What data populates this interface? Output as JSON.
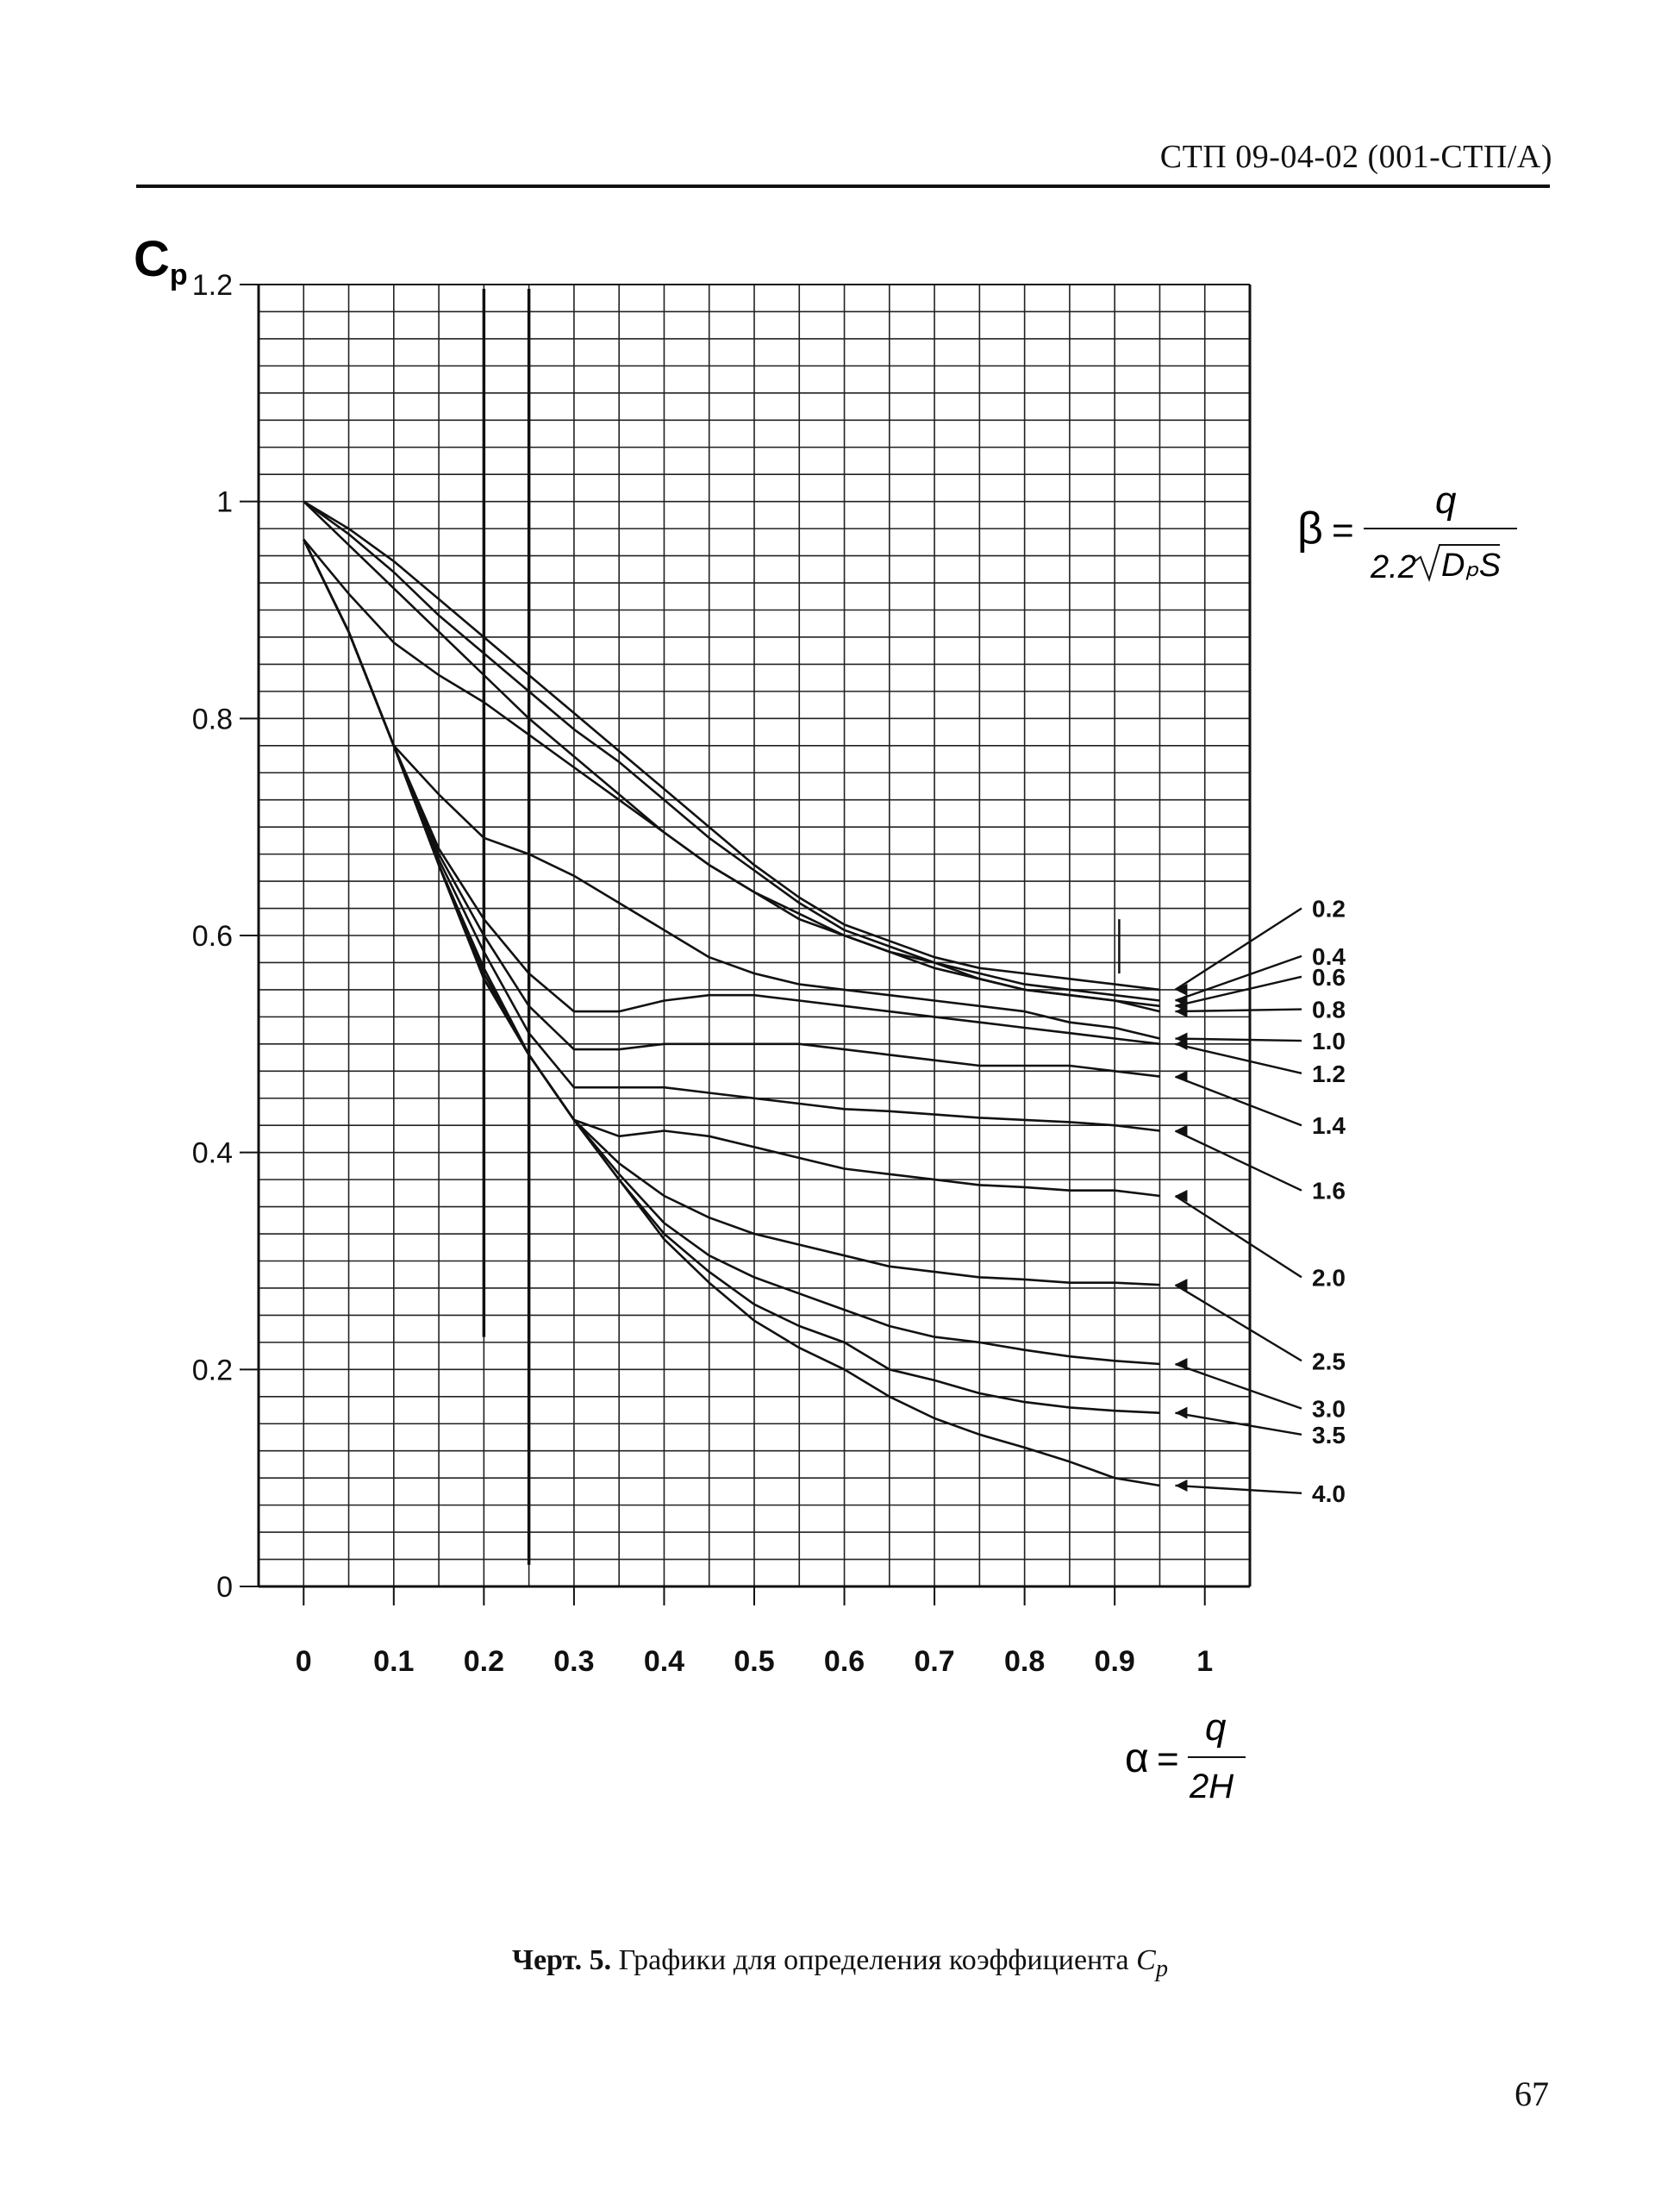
{
  "header": {
    "doc_code": "СТП 09-04-02 (001-СТП/А)"
  },
  "caption": {
    "label": "Черт. 5.",
    "text": "Графики для определения коэффициента",
    "symbol": "C",
    "symbol_sub": "p"
  },
  "page_number": "67",
  "chart_data": {
    "type": "line",
    "y_axis_symbol": "C",
    "y_axis_symbol_sub": "p",
    "x_ticks": [
      "0",
      "0.1",
      "0.2",
      "0.3",
      "0.4",
      "0.5",
      "0.6",
      "0.7",
      "0.8",
      "0.9",
      "1"
    ],
    "y_ticks": [
      "0",
      "0.2",
      "0.4",
      "0.6",
      "0.8",
      "1",
      "1.2"
    ],
    "xlim": [
      -0.05,
      1.05
    ],
    "ylim": [
      0,
      1.2
    ],
    "grid": true,
    "beta_formula": {
      "lhs": "β",
      "numerator": "q",
      "coef": "2.2",
      "radicand": "DₚS"
    },
    "alpha_formula": {
      "lhs": "α",
      "numerator": "q",
      "denominator": "2H"
    },
    "series": [
      {
        "name": "0.2",
        "label_y": 0.625,
        "points": [
          [
            0,
            1.0
          ],
          [
            0.05,
            0.975
          ],
          [
            0.1,
            0.945
          ],
          [
            0.15,
            0.91
          ],
          [
            0.2,
            0.875
          ],
          [
            0.25,
            0.84
          ],
          [
            0.3,
            0.805
          ],
          [
            0.35,
            0.77
          ],
          [
            0.4,
            0.735
          ],
          [
            0.45,
            0.7
          ],
          [
            0.5,
            0.665
          ],
          [
            0.55,
            0.635
          ],
          [
            0.6,
            0.61
          ],
          [
            0.65,
            0.595
          ],
          [
            0.7,
            0.58
          ],
          [
            0.75,
            0.57
          ],
          [
            0.8,
            0.565
          ],
          [
            0.85,
            0.56
          ],
          [
            0.9,
            0.555
          ],
          [
            0.95,
            0.55
          ]
        ]
      },
      {
        "name": "0.4",
        "label_y": 0.581,
        "points": [
          [
            0,
            1.0
          ],
          [
            0.05,
            0.97
          ],
          [
            0.1,
            0.935
          ],
          [
            0.15,
            0.895
          ],
          [
            0.2,
            0.86
          ],
          [
            0.25,
            0.825
          ],
          [
            0.3,
            0.79
          ],
          [
            0.35,
            0.76
          ],
          [
            0.4,
            0.725
          ],
          [
            0.45,
            0.69
          ],
          [
            0.5,
            0.66
          ],
          [
            0.55,
            0.63
          ],
          [
            0.6,
            0.605
          ],
          [
            0.65,
            0.59
          ],
          [
            0.7,
            0.575
          ],
          [
            0.75,
            0.565
          ],
          [
            0.8,
            0.555
          ],
          [
            0.85,
            0.55
          ],
          [
            0.9,
            0.545
          ],
          [
            0.95,
            0.54
          ]
        ]
      },
      {
        "name": "0.6",
        "label_y": 0.562,
        "points": [
          [
            0,
            1.0
          ],
          [
            0.05,
            0.96
          ],
          [
            0.1,
            0.92
          ],
          [
            0.15,
            0.88
          ],
          [
            0.2,
            0.84
          ],
          [
            0.25,
            0.8
          ],
          [
            0.3,
            0.765
          ],
          [
            0.35,
            0.73
          ],
          [
            0.4,
            0.695
          ],
          [
            0.45,
            0.665
          ],
          [
            0.5,
            0.64
          ],
          [
            0.55,
            0.615
          ],
          [
            0.6,
            0.6
          ],
          [
            0.65,
            0.585
          ],
          [
            0.7,
            0.57
          ],
          [
            0.75,
            0.56
          ],
          [
            0.8,
            0.55
          ],
          [
            0.85,
            0.545
          ],
          [
            0.9,
            0.54
          ],
          [
            0.95,
            0.535
          ]
        ]
      },
      {
        "name": "0.8",
        "label_y": 0.532,
        "points": [
          [
            0,
            0.965
          ],
          [
            0.05,
            0.915
          ],
          [
            0.1,
            0.87
          ],
          [
            0.15,
            0.84
          ],
          [
            0.2,
            0.815
          ],
          [
            0.25,
            0.785
          ],
          [
            0.3,
            0.755
          ],
          [
            0.35,
            0.725
          ],
          [
            0.4,
            0.695
          ],
          [
            0.45,
            0.665
          ],
          [
            0.5,
            0.64
          ],
          [
            0.55,
            0.62
          ],
          [
            0.6,
            0.6
          ],
          [
            0.65,
            0.585
          ],
          [
            0.7,
            0.575
          ],
          [
            0.75,
            0.56
          ],
          [
            0.8,
            0.55
          ],
          [
            0.85,
            0.545
          ],
          [
            0.9,
            0.54
          ],
          [
            0.95,
            0.53
          ]
        ]
      },
      {
        "name": "1.0",
        "label_y": 0.503,
        "points": [
          [
            0,
            0.965
          ],
          [
            0.05,
            0.88
          ],
          [
            0.1,
            0.775
          ],
          [
            0.15,
            0.73
          ],
          [
            0.2,
            0.69
          ],
          [
            0.25,
            0.675
          ],
          [
            0.3,
            0.655
          ],
          [
            0.35,
            0.63
          ],
          [
            0.4,
            0.605
          ],
          [
            0.45,
            0.58
          ],
          [
            0.5,
            0.565
          ],
          [
            0.55,
            0.555
          ],
          [
            0.6,
            0.55
          ],
          [
            0.65,
            0.545
          ],
          [
            0.7,
            0.54
          ],
          [
            0.75,
            0.535
          ],
          [
            0.8,
            0.53
          ],
          [
            0.85,
            0.52
          ],
          [
            0.9,
            0.515
          ],
          [
            0.95,
            0.505
          ]
        ]
      },
      {
        "name": "1.2",
        "label_y": 0.473,
        "points": [
          [
            0,
            0.965
          ],
          [
            0.05,
            0.88
          ],
          [
            0.1,
            0.775
          ],
          [
            0.15,
            0.68
          ],
          [
            0.2,
            0.615
          ],
          [
            0.25,
            0.565
          ],
          [
            0.3,
            0.53
          ],
          [
            0.35,
            0.53
          ],
          [
            0.4,
            0.54
          ],
          [
            0.45,
            0.545
          ],
          [
            0.5,
            0.545
          ],
          [
            0.55,
            0.54
          ],
          [
            0.6,
            0.535
          ],
          [
            0.65,
            0.53
          ],
          [
            0.7,
            0.525
          ],
          [
            0.75,
            0.52
          ],
          [
            0.8,
            0.515
          ],
          [
            0.85,
            0.51
          ],
          [
            0.9,
            0.505
          ],
          [
            0.95,
            0.5
          ]
        ]
      },
      {
        "name": "1.4",
        "label_y": 0.425,
        "points": [
          [
            0,
            0.965
          ],
          [
            0.05,
            0.88
          ],
          [
            0.1,
            0.775
          ],
          [
            0.15,
            0.675
          ],
          [
            0.2,
            0.6
          ],
          [
            0.25,
            0.535
          ],
          [
            0.3,
            0.495
          ],
          [
            0.35,
            0.495
          ],
          [
            0.4,
            0.5
          ],
          [
            0.45,
            0.5
          ],
          [
            0.5,
            0.5
          ],
          [
            0.55,
            0.5
          ],
          [
            0.6,
            0.495
          ],
          [
            0.65,
            0.49
          ],
          [
            0.7,
            0.485
          ],
          [
            0.75,
            0.48
          ],
          [
            0.8,
            0.48
          ],
          [
            0.85,
            0.48
          ],
          [
            0.9,
            0.475
          ],
          [
            0.95,
            0.47
          ]
        ]
      },
      {
        "name": "1.6",
        "label_y": 0.365,
        "points": [
          [
            0,
            0.965
          ],
          [
            0.05,
            0.88
          ],
          [
            0.1,
            0.775
          ],
          [
            0.15,
            0.67
          ],
          [
            0.2,
            0.585
          ],
          [
            0.25,
            0.51
          ],
          [
            0.3,
            0.46
          ],
          [
            0.35,
            0.46
          ],
          [
            0.4,
            0.46
          ],
          [
            0.45,
            0.455
          ],
          [
            0.5,
            0.45
          ],
          [
            0.55,
            0.445
          ],
          [
            0.6,
            0.44
          ],
          [
            0.65,
            0.438
          ],
          [
            0.7,
            0.435
          ],
          [
            0.75,
            0.432
          ],
          [
            0.8,
            0.43
          ],
          [
            0.85,
            0.428
          ],
          [
            0.9,
            0.425
          ],
          [
            0.95,
            0.42
          ]
        ]
      },
      {
        "name": "2.0",
        "label_y": 0.285,
        "points": [
          [
            0,
            0.965
          ],
          [
            0.05,
            0.88
          ],
          [
            0.1,
            0.775
          ],
          [
            0.15,
            0.665
          ],
          [
            0.2,
            0.57
          ],
          [
            0.25,
            0.49
          ],
          [
            0.3,
            0.43
          ],
          [
            0.35,
            0.415
          ],
          [
            0.4,
            0.42
          ],
          [
            0.45,
            0.415
          ],
          [
            0.5,
            0.405
          ],
          [
            0.55,
            0.395
          ],
          [
            0.6,
            0.385
          ],
          [
            0.65,
            0.38
          ],
          [
            0.7,
            0.375
          ],
          [
            0.75,
            0.37
          ],
          [
            0.8,
            0.368
          ],
          [
            0.85,
            0.365
          ],
          [
            0.9,
            0.365
          ],
          [
            0.95,
            0.36
          ]
        ]
      },
      {
        "name": "2.5",
        "label_y": 0.208,
        "points": [
          [
            0,
            0.965
          ],
          [
            0.05,
            0.88
          ],
          [
            0.1,
            0.775
          ],
          [
            0.15,
            0.665
          ],
          [
            0.2,
            0.565
          ],
          [
            0.25,
            0.49
          ],
          [
            0.3,
            0.43
          ],
          [
            0.35,
            0.39
          ],
          [
            0.4,
            0.36
          ],
          [
            0.45,
            0.34
          ],
          [
            0.5,
            0.325
          ],
          [
            0.55,
            0.315
          ],
          [
            0.6,
            0.305
          ],
          [
            0.65,
            0.295
          ],
          [
            0.7,
            0.29
          ],
          [
            0.75,
            0.285
          ],
          [
            0.8,
            0.283
          ],
          [
            0.85,
            0.28
          ],
          [
            0.9,
            0.28
          ],
          [
            0.95,
            0.278
          ]
        ]
      },
      {
        "name": "3.0",
        "label_y": 0.164,
        "points": [
          [
            0,
            0.965
          ],
          [
            0.05,
            0.88
          ],
          [
            0.1,
            0.775
          ],
          [
            0.15,
            0.665
          ],
          [
            0.2,
            0.56
          ],
          [
            0.25,
            0.49
          ],
          [
            0.3,
            0.43
          ],
          [
            0.35,
            0.38
          ],
          [
            0.4,
            0.335
          ],
          [
            0.45,
            0.305
          ],
          [
            0.5,
            0.285
          ],
          [
            0.55,
            0.27
          ],
          [
            0.6,
            0.255
          ],
          [
            0.65,
            0.24
          ],
          [
            0.7,
            0.23
          ],
          [
            0.75,
            0.225
          ],
          [
            0.8,
            0.218
          ],
          [
            0.85,
            0.212
          ],
          [
            0.9,
            0.208
          ],
          [
            0.95,
            0.205
          ]
        ]
      },
      {
        "name": "3.5",
        "label_y": 0.14,
        "points": [
          [
            0,
            0.965
          ],
          [
            0.05,
            0.88
          ],
          [
            0.1,
            0.775
          ],
          [
            0.15,
            0.665
          ],
          [
            0.2,
            0.56
          ],
          [
            0.25,
            0.49
          ],
          [
            0.3,
            0.43
          ],
          [
            0.35,
            0.375
          ],
          [
            0.4,
            0.325
          ],
          [
            0.45,
            0.29
          ],
          [
            0.5,
            0.26
          ],
          [
            0.55,
            0.24
          ],
          [
            0.6,
            0.225
          ],
          [
            0.65,
            0.2
          ],
          [
            0.7,
            0.19
          ],
          [
            0.75,
            0.178
          ],
          [
            0.8,
            0.17
          ],
          [
            0.85,
            0.165
          ],
          [
            0.9,
            0.162
          ],
          [
            0.95,
            0.16
          ]
        ]
      },
      {
        "name": "4.0",
        "label_y": 0.086,
        "points": [
          [
            0,
            0.965
          ],
          [
            0.05,
            0.88
          ],
          [
            0.1,
            0.775
          ],
          [
            0.15,
            0.665
          ],
          [
            0.2,
            0.56
          ],
          [
            0.25,
            0.49
          ],
          [
            0.3,
            0.43
          ],
          [
            0.35,
            0.375
          ],
          [
            0.4,
            0.32
          ],
          [
            0.45,
            0.28
          ],
          [
            0.5,
            0.245
          ],
          [
            0.55,
            0.22
          ],
          [
            0.6,
            0.2
          ],
          [
            0.65,
            0.175
          ],
          [
            0.7,
            0.155
          ],
          [
            0.75,
            0.14
          ],
          [
            0.8,
            0.128
          ],
          [
            0.85,
            0.115
          ],
          [
            0.9,
            0.1
          ],
          [
            0.95,
            0.093
          ]
        ]
      }
    ]
  }
}
